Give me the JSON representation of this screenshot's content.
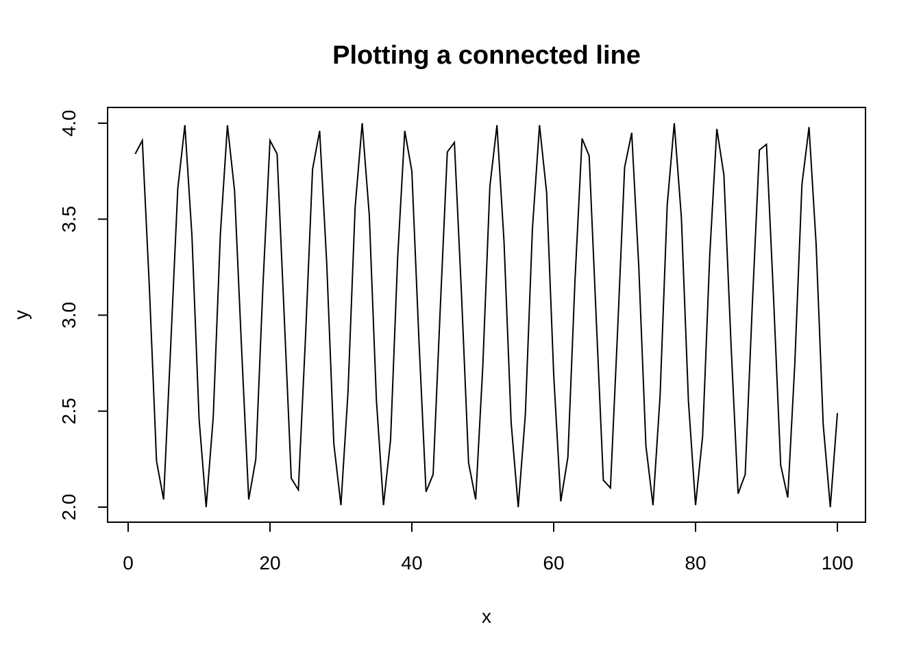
{
  "chart_data": {
    "type": "line",
    "title": "Plotting a connected line",
    "xlabel": "x",
    "ylabel": "y",
    "xlim": [
      0,
      100
    ],
    "ylim": [
      2.0,
      4.0
    ],
    "grid": false,
    "x_ticks": [
      "0",
      "20",
      "40",
      "60",
      "80",
      "100"
    ],
    "y_ticks": [
      "2.0",
      "2.5",
      "3.0",
      "3.5",
      "4.0"
    ],
    "line_color": "#000000",
    "series": [
      {
        "x": [
          1,
          2,
          3,
          4,
          5,
          6,
          7,
          8,
          9,
          10,
          11,
          12,
          13,
          14,
          15,
          16,
          17,
          18,
          19,
          20,
          21,
          22,
          23,
          24,
          25,
          26,
          27,
          28,
          29,
          30,
          31,
          32,
          33,
          34,
          35,
          36,
          37,
          38,
          39,
          40,
          41,
          42,
          43,
          44,
          45,
          46,
          47,
          48,
          49,
          50,
          51,
          52,
          53,
          54,
          55,
          56,
          57,
          58,
          59,
          60,
          61,
          62,
          63,
          64,
          65,
          66,
          67,
          68,
          69,
          70,
          71,
          72,
          73,
          74,
          75,
          76,
          77,
          78,
          79,
          80,
          81,
          82,
          83,
          84,
          85,
          86,
          87,
          88,
          89,
          90,
          91,
          92,
          93,
          94,
          95,
          96,
          97,
          98,
          99,
          100
        ],
        "values": [
          3.84,
          3.91,
          3.14,
          2.24,
          2.04,
          2.84,
          3.66,
          3.99,
          3.41,
          2.46,
          2.0,
          2.47,
          3.42,
          3.99,
          3.65,
          2.82,
          2.04,
          2.25,
          3.15,
          3.91,
          3.84,
          3.0,
          2.15,
          2.09,
          2.88,
          3.76,
          3.96,
          3.27,
          2.33,
          2.01,
          2.6,
          3.56,
          4.0,
          3.52,
          2.56,
          2.01,
          2.35,
          3.3,
          3.96,
          3.75,
          2.87,
          2.08,
          2.17,
          3.03,
          3.85,
          3.9,
          3.11,
          2.23,
          2.04,
          2.73,
          3.67,
          3.99,
          3.38,
          2.44,
          2.0,
          2.48,
          3.45,
          3.99,
          3.64,
          2.69,
          2.03,
          2.26,
          3.18,
          3.92,
          3.83,
          2.98,
          2.14,
          2.1,
          2.91,
          3.77,
          3.95,
          3.25,
          2.32,
          2.01,
          2.58,
          3.57,
          4.0,
          3.51,
          2.55,
          2.01,
          2.37,
          3.31,
          3.97,
          3.73,
          2.85,
          2.07,
          2.17,
          3.05,
          3.86,
          3.89,
          3.09,
          2.22,
          2.05,
          2.75,
          3.68,
          3.98,
          3.37,
          2.43,
          2.0,
          2.49
        ]
      }
    ]
  }
}
